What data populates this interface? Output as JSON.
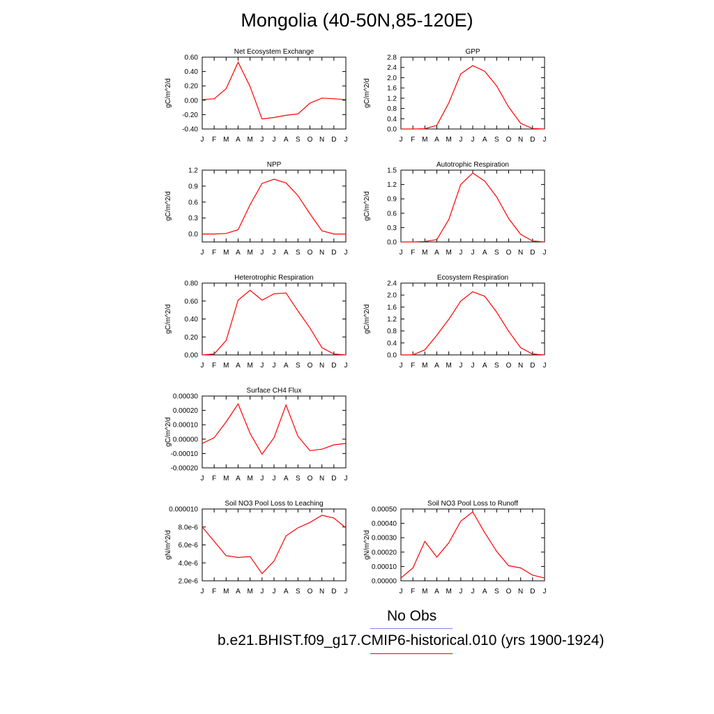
{
  "page": {
    "title": "Mongolia (40-50N,85-120E)"
  },
  "legend": {
    "obs_label": "No Obs",
    "obs_color": "#8080ff",
    "model_label": "b.e21.BHIST.f09_g17.CMIP6-historical.010 (yrs 1900-1924)",
    "model_color": "#ff0000"
  },
  "chart_data": [
    {
      "type": "line",
      "title": "Net Ecosystem Exchange",
      "ylabel": "gC/m^2/d",
      "x": [
        "J",
        "F",
        "M",
        "A",
        "M",
        "J",
        "J",
        "A",
        "S",
        "O",
        "N",
        "D",
        "J"
      ],
      "ylim": [
        -0.4,
        0.6
      ],
      "yticks": [
        -0.4,
        -0.2,
        0.0,
        0.2,
        0.4,
        0.6
      ],
      "yticklabels": [
        "-0.40",
        "-0.20",
        "0.00",
        "0.20",
        "0.40",
        "0.60"
      ],
      "series": [
        {
          "values": [
            0.01,
            0.02,
            0.16,
            0.53,
            0.19,
            -0.26,
            -0.24,
            -0.21,
            -0.19,
            -0.04,
            0.03,
            0.02,
            0.01
          ],
          "color": "#ff0000"
        }
      ]
    },
    {
      "type": "line",
      "title": "GPP",
      "ylabel": "gC/m^2/d",
      "x": [
        "J",
        "F",
        "M",
        "A",
        "M",
        "J",
        "J",
        "A",
        "S",
        "O",
        "N",
        "D",
        "J"
      ],
      "ylim": [
        0.0,
        2.8
      ],
      "yticks": [
        0.0,
        0.4,
        0.8,
        1.2,
        1.6,
        2.0,
        2.4,
        2.8
      ],
      "yticklabels": [
        "0.0",
        "0.4",
        "0.8",
        "1.2",
        "1.6",
        "2.0",
        "2.4",
        "2.8"
      ],
      "series": [
        {
          "values": [
            0.0,
            0.0,
            0.01,
            0.14,
            1.02,
            2.15,
            2.47,
            2.25,
            1.68,
            0.86,
            0.22,
            0.02,
            0.0
          ],
          "color": "#ff0000"
        }
      ]
    },
    {
      "type": "line",
      "title": "NPP",
      "ylabel": "gC/m^2/d",
      "x": [
        "J",
        "F",
        "M",
        "A",
        "M",
        "J",
        "J",
        "A",
        "S",
        "O",
        "N",
        "D",
        "J"
      ],
      "ylim": [
        -0.15,
        1.2
      ],
      "yticks": [
        0.0,
        0.3,
        0.6,
        0.9,
        1.2
      ],
      "yticklabels": [
        "0.0",
        "0.3",
        "0.6",
        "0.9",
        "1.2"
      ],
      "series": [
        {
          "values": [
            0.0,
            0.0,
            0.01,
            0.08,
            0.55,
            0.95,
            1.03,
            0.96,
            0.72,
            0.38,
            0.06,
            0.0,
            0.0
          ],
          "color": "#ff0000"
        }
      ]
    },
    {
      "type": "line",
      "title": "Autotrophic Respiration",
      "ylabel": "gC/m^2/d",
      "x": [
        "J",
        "F",
        "M",
        "A",
        "M",
        "J",
        "J",
        "A",
        "S",
        "O",
        "N",
        "D",
        "J"
      ],
      "ylim": [
        0.0,
        1.5
      ],
      "yticks": [
        0.0,
        0.3,
        0.6,
        0.9,
        1.2,
        1.5
      ],
      "yticklabels": [
        "0.0",
        "0.3",
        "0.6",
        "0.9",
        "1.2",
        "1.5"
      ],
      "series": [
        {
          "values": [
            0.0,
            0.0,
            0.01,
            0.05,
            0.47,
            1.2,
            1.44,
            1.27,
            0.94,
            0.49,
            0.16,
            0.02,
            0.0
          ],
          "color": "#ff0000"
        }
      ]
    },
    {
      "type": "line",
      "title": "Heterotrophic Respiration",
      "ylabel": "gC/m^2/d",
      "x": [
        "J",
        "F",
        "M",
        "A",
        "M",
        "J",
        "J",
        "A",
        "S",
        "O",
        "N",
        "D",
        "J"
      ],
      "ylim": [
        0.0,
        0.8
      ],
      "yticks": [
        0.0,
        0.2,
        0.4,
        0.6,
        0.8
      ],
      "yticklabels": [
        "0.00",
        "0.20",
        "0.40",
        "0.60",
        "0.80"
      ],
      "series": [
        {
          "values": [
            0.0,
            0.01,
            0.16,
            0.61,
            0.72,
            0.61,
            0.68,
            0.69,
            0.49,
            0.3,
            0.08,
            0.01,
            0.0
          ],
          "color": "#ff0000"
        }
      ]
    },
    {
      "type": "line",
      "title": "Ecosystem Respiration",
      "ylabel": "gC/m^2/d",
      "x": [
        "J",
        "F",
        "M",
        "A",
        "M",
        "J",
        "J",
        "A",
        "S",
        "O",
        "N",
        "D",
        "J"
      ],
      "ylim": [
        0.0,
        2.4
      ],
      "yticks": [
        0.0,
        0.4,
        0.8,
        1.2,
        1.6,
        2.0,
        2.4
      ],
      "yticklabels": [
        "0.0",
        "0.4",
        "0.8",
        "1.2",
        "1.6",
        "2.0",
        "2.4"
      ],
      "series": [
        {
          "values": [
            0.0,
            0.0,
            0.17,
            0.66,
            1.19,
            1.8,
            2.11,
            1.96,
            1.43,
            0.79,
            0.24,
            0.03,
            0.0
          ],
          "color": "#ff0000"
        }
      ]
    },
    {
      "type": "line",
      "title": "Surface CH4 Flux",
      "ylabel": "gC/m^2/d",
      "x": [
        "J",
        "F",
        "M",
        "A",
        "M",
        "J",
        "J",
        "A",
        "S",
        "O",
        "N",
        "D",
        "J"
      ],
      "ylim": [
        -0.0002,
        0.0003
      ],
      "yticks": [
        -0.0002,
        -0.0001,
        0.0,
        0.0001,
        0.0002,
        0.0003
      ],
      "yticklabels": [
        "-0.00020",
        "-0.00010",
        "0.00000",
        "0.00010",
        "0.00020",
        "0.00030"
      ],
      "series": [
        {
          "values": [
            -3e-05,
            1e-05,
            0.00012,
            0.000245,
            4e-05,
            -0.000105,
            1e-05,
            0.000238,
            2e-05,
            -8e-05,
            -7e-05,
            -4e-05,
            -3e-05
          ],
          "color": "#ff0000"
        }
      ]
    },
    {
      "type": "line",
      "title": "Soil NO3 Pool Loss to Leaching",
      "ylabel": "gN/m^2/d",
      "x": [
        "J",
        "F",
        "M",
        "A",
        "M",
        "J",
        "J",
        "A",
        "S",
        "O",
        "N",
        "D",
        "J"
      ],
      "ylim": [
        2e-06,
        1e-05
      ],
      "yticks": [
        2e-06,
        4e-06,
        6e-06,
        8e-06,
        1e-05
      ],
      "yticklabels": [
        "2.0e-6",
        "4.0e-6",
        "6.0e-6",
        "8.0e-6",
        "0.000010"
      ],
      "series": [
        {
          "values": [
            8e-06,
            6.4e-06,
            4.8e-06,
            4.6e-06,
            4.7e-06,
            2.8e-06,
            4.2e-06,
            7e-06,
            7.9e-06,
            8.5e-06,
            9.3e-06,
            9e-06,
            7.9e-06
          ],
          "color": "#ff0000"
        }
      ]
    },
    {
      "type": "line",
      "title": "Soil NO3 Pool Loss to Runoff",
      "ylabel": "gN/m^2/d",
      "x": [
        "J",
        "F",
        "M",
        "A",
        "M",
        "J",
        "J",
        "A",
        "S",
        "O",
        "N",
        "D",
        "J"
      ],
      "ylim": [
        0.0,
        0.0005
      ],
      "yticks": [
        0.0,
        0.0001,
        0.0002,
        0.0003,
        0.0004,
        0.0005
      ],
      "yticklabels": [
        "0.00000",
        "0.00010",
        "0.00020",
        "0.00030",
        "0.00040",
        "0.00050"
      ],
      "series": [
        {
          "values": [
            2e-05,
            9e-05,
            0.000275,
            0.000165,
            0.000265,
            0.000415,
            0.00048,
            0.000335,
            0.000205,
            0.000105,
            9e-05,
            4e-05,
            2e-05
          ],
          "color": "#ff0000"
        }
      ]
    }
  ]
}
